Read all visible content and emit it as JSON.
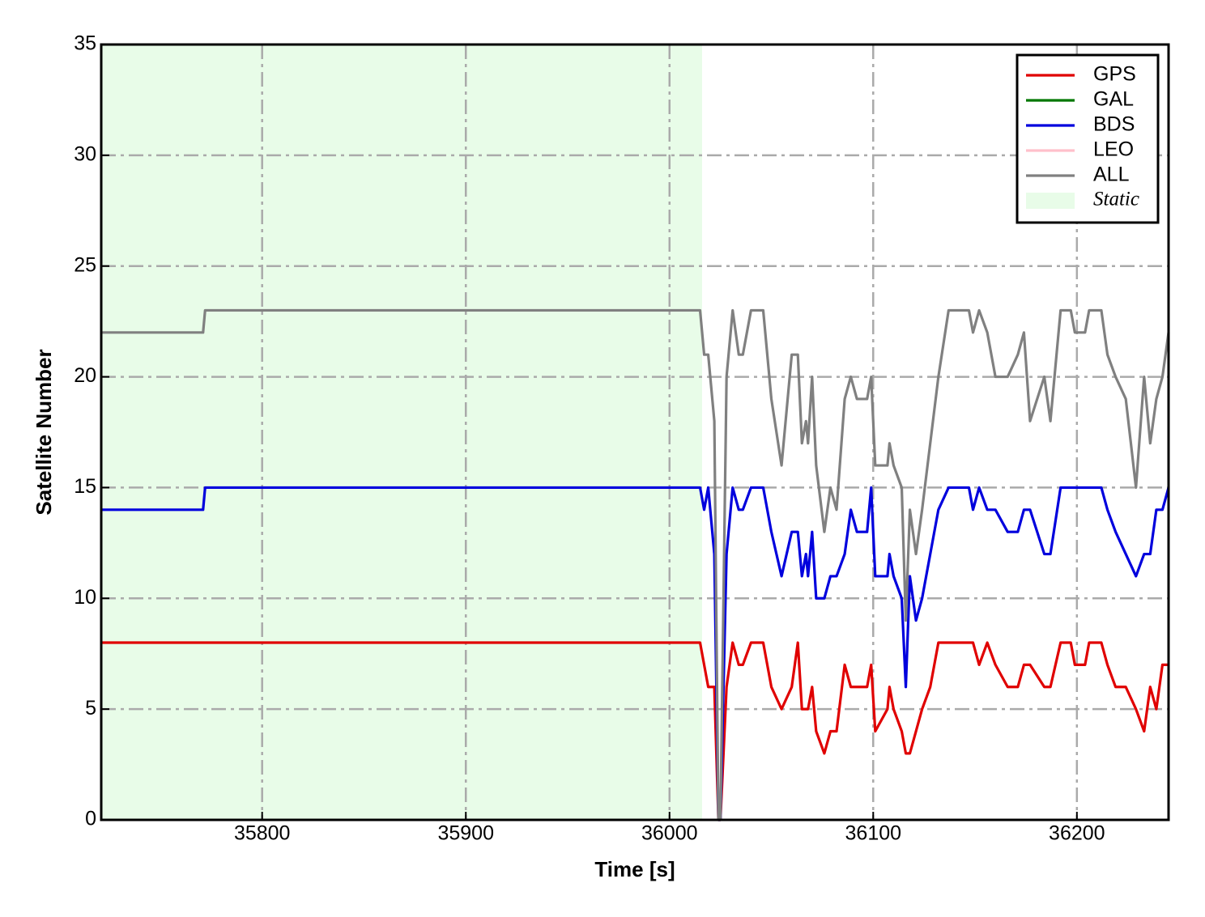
{
  "chart_data": {
    "type": "line",
    "xlabel": "Time [s]",
    "ylabel": "Satellite Number",
    "xlim": [
      35721,
      36245
    ],
    "ylim": [
      0,
      35
    ],
    "xticks": [
      35800,
      35900,
      36000,
      36100,
      36200
    ],
    "yticks": [
      0,
      5,
      10,
      15,
      20,
      25,
      30,
      35
    ],
    "grid": true,
    "legend": "upper right",
    "shaded_span": {
      "label": "Static",
      "x": [
        35721,
        36016
      ],
      "color": "#e8fce8"
    },
    "x": [
      35721,
      35771,
      35772,
      36015,
      36017,
      36019,
      36022,
      36024,
      36025,
      36028,
      36031,
      36034,
      36036,
      36040,
      36046,
      36050,
      36055,
      36060,
      36063,
      36065,
      36067,
      36068,
      36070,
      36072,
      36076,
      36079,
      36082,
      36086,
      36089,
      36092,
      36097,
      36099,
      36101,
      36107,
      36108,
      36110,
      36114,
      36116,
      36118,
      36121,
      36124,
      36128,
      36132,
      36137,
      36147,
      36149,
      36152,
      36156,
      36160,
      36166,
      36171,
      36174,
      36177,
      36184,
      36187,
      36192,
      36197,
      36199,
      36204,
      36206,
      36212,
      36215,
      36219,
      36224,
      36229,
      36233,
      36236,
      36239,
      36242,
      36245
    ],
    "series": [
      {
        "name": "GPS",
        "color": "#e00000",
        "values": [
          8,
          8,
          8,
          8,
          7,
          6,
          6,
          0,
          0,
          6,
          8,
          7,
          7,
          8,
          8,
          6,
          5,
          6,
          8,
          5,
          5,
          5,
          6,
          4,
          3,
          4,
          4,
          7,
          6,
          6,
          6,
          7,
          4,
          5,
          6,
          5,
          4,
          3,
          3,
          4,
          5,
          6,
          8,
          8,
          8,
          8,
          7,
          8,
          7,
          6,
          6,
          7,
          7,
          6,
          6,
          8,
          8,
          7,
          7,
          8,
          8,
          7,
          6,
          6,
          5,
          4,
          6,
          5,
          7,
          7
        ]
      },
      {
        "name": "GAL",
        "color": "#007700"
      },
      {
        "name": "BDS",
        "color": "#0000dd",
        "values": [
          14,
          14,
          15,
          15,
          14,
          15,
          12,
          0,
          0,
          12,
          15,
          14,
          14,
          15,
          15,
          13,
          11,
          13,
          13,
          11,
          12,
          11,
          13,
          10,
          10,
          11,
          11,
          12,
          14,
          13,
          13,
          15,
          11,
          11,
          12,
          11,
          10,
          6,
          11,
          9,
          10,
          12,
          14,
          15,
          15,
          14,
          15,
          14,
          14,
          13,
          13,
          14,
          14,
          12,
          12,
          15,
          15,
          15,
          15,
          15,
          15,
          14,
          13,
          12,
          11,
          12,
          12,
          14,
          14,
          15
        ]
      },
      {
        "name": "LEO",
        "color": "#ffc0cb"
      },
      {
        "name": "ALL",
        "color": "#808080",
        "values": [
          22,
          22,
          23,
          23,
          21,
          21,
          18,
          0,
          0,
          20,
          23,
          21,
          21,
          23,
          23,
          19,
          16,
          21,
          21,
          17,
          18,
          17,
          20,
          16,
          13,
          15,
          14,
          19,
          20,
          19,
          19,
          20,
          16,
          16,
          17,
          16,
          15,
          9,
          14,
          12,
          14,
          17,
          20,
          23,
          23,
          22,
          23,
          22,
          20,
          20,
          21,
          22,
          18,
          20,
          18,
          23,
          23,
          22,
          22,
          23,
          23,
          21,
          20,
          19,
          15,
          20,
          17,
          19,
          20,
          22
        ]
      }
    ]
  }
}
